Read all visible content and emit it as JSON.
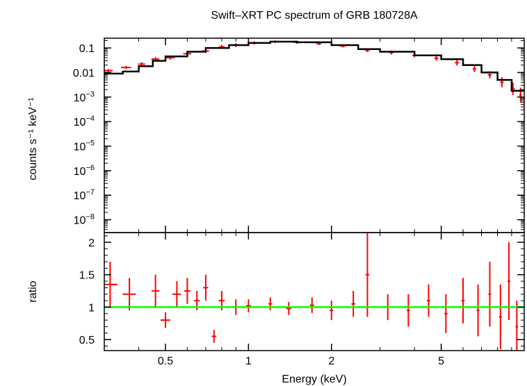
{
  "chart_data": {
    "type": "scatter",
    "title": "Swift–XRT PC spectrum of GRB 180728A",
    "xlabel": "Energy (keV)",
    "xscale": "log",
    "xlim": [
      0.3,
      10
    ],
    "x_ticks": [
      0.5,
      1,
      2,
      5
    ],
    "x_tick_labels": [
      "0.5",
      "1",
      "2",
      "5"
    ],
    "colors": {
      "data": "#ff0000",
      "model": "#000000",
      "ratio_line": "#00ff00",
      "frame": "#000000"
    },
    "panels": [
      {
        "id": "spectrum",
        "ylabel": "counts s⁻¹ keV⁻¹",
        "yscale": "log",
        "ylim": [
          3e-09,
          0.25
        ],
        "y_ticks": [
          0.1,
          0.01,
          0.001,
          0.0001,
          1e-05,
          1e-06,
          1e-07,
          1e-08
        ],
        "y_tick_labels": [
          {
            "base": "0.1",
            "exp": ""
          },
          {
            "base": "0.01",
            "exp": ""
          },
          {
            "base": "10",
            "exp": "−3"
          },
          {
            "base": "10",
            "exp": "−4"
          },
          {
            "base": "10",
            "exp": "−5"
          },
          {
            "base": "10",
            "exp": "−6"
          },
          {
            "base": "10",
            "exp": "−7"
          },
          {
            "base": "10",
            "exp": "−8"
          }
        ],
        "model_step": {
          "edges": [
            0.3,
            0.35,
            0.4,
            0.45,
            0.5,
            0.6,
            0.7,
            0.85,
            1.0,
            1.2,
            1.5,
            2.0,
            2.5,
            3.0,
            4.0,
            5.0,
            6.0,
            7.0,
            8.0,
            9.0,
            10.0
          ],
          "values": [
            0.009,
            0.011,
            0.018,
            0.03,
            0.045,
            0.07,
            0.1,
            0.13,
            0.16,
            0.18,
            0.17,
            0.13,
            0.09,
            0.07,
            0.05,
            0.035,
            0.02,
            0.01,
            0.005,
            0.0018
          ]
        },
        "data_points": [
          {
            "x": 0.31,
            "y": 0.012,
            "xerr": 0.012,
            "yerr_factor": 1.15
          },
          {
            "x": 0.36,
            "y": 0.016,
            "xerr": 0.015,
            "yerr_factor": 1.15
          },
          {
            "x": 0.41,
            "y": 0.022,
            "xerr": 0.012,
            "yerr_factor": 1.2
          },
          {
            "x": 0.46,
            "y": 0.035,
            "xerr": 0.015,
            "yerr_factor": 1.2
          },
          {
            "x": 0.52,
            "y": 0.04,
            "xerr": 0.02,
            "yerr_factor": 1.2
          },
          {
            "x": 0.6,
            "y": 0.058,
            "xerr": 0.02,
            "yerr_factor": 1.2
          },
          {
            "x": 0.7,
            "y": 0.075,
            "xerr": 0.02,
            "yerr_factor": 1.2
          },
          {
            "x": 0.8,
            "y": 0.11,
            "xerr": 0.02,
            "yerr_factor": 1.2
          },
          {
            "x": 0.9,
            "y": 0.13,
            "xerr": 0.02,
            "yerr_factor": 1.2
          },
          {
            "x": 1.05,
            "y": 0.16,
            "xerr": 0.03,
            "yerr_factor": 1.15
          },
          {
            "x": 1.25,
            "y": 0.18,
            "xerr": 0.03,
            "yerr_factor": 1.15
          },
          {
            "x": 1.5,
            "y": 0.17,
            "xerr": 0.04,
            "yerr_factor": 1.15
          },
          {
            "x": 1.8,
            "y": 0.15,
            "xerr": 0.04,
            "yerr_factor": 1.15
          },
          {
            "x": 2.2,
            "y": 0.12,
            "xerr": 0.05,
            "yerr_factor": 1.15
          },
          {
            "x": 2.7,
            "y": 0.08,
            "xerr": 0.05,
            "yerr_factor": 1.2
          },
          {
            "x": 3.3,
            "y": 0.065,
            "xerr": 0.06,
            "yerr_factor": 1.2
          },
          {
            "x": 4.0,
            "y": 0.05,
            "xerr": 0.07,
            "yerr_factor": 1.2
          },
          {
            "x": 4.8,
            "y": 0.038,
            "xerr": 0.08,
            "yerr_factor": 1.25
          },
          {
            "x": 5.7,
            "y": 0.025,
            "xerr": 0.1,
            "yerr_factor": 1.3
          },
          {
            "x": 6.6,
            "y": 0.014,
            "xerr": 0.1,
            "yerr_factor": 1.35
          },
          {
            "x": 7.5,
            "y": 0.008,
            "xerr": 0.12,
            "yerr_factor": 1.4
          },
          {
            "x": 8.3,
            "y": 0.004,
            "xerr": 0.12,
            "yerr_factor": 1.6
          },
          {
            "x": 9.1,
            "y": 0.0022,
            "xerr": 0.15,
            "yerr_factor": 1.8
          },
          {
            "x": 9.7,
            "y": 0.0012,
            "xerr": 0.1,
            "yerr_factor": 2.0
          }
        ]
      },
      {
        "id": "ratio",
        "ylabel": "ratio",
        "yscale": "linear",
        "ylim": [
          0.33,
          2.15
        ],
        "y_ticks": [
          0.5,
          1,
          1.5,
          2
        ],
        "y_tick_labels": [
          "0.5",
          "1",
          "1.5",
          "2"
        ],
        "reference_line": 1,
        "data_points": [
          {
            "x": 0.315,
            "y": 1.35,
            "xerr": 0.02,
            "yerr": 0.35
          },
          {
            "x": 0.37,
            "y": 1.2,
            "xerr": 0.02,
            "yerr": 0.25
          },
          {
            "x": 0.46,
            "y": 1.25,
            "xerr": 0.015,
            "yerr": 0.25
          },
          {
            "x": 0.5,
            "y": 0.8,
            "xerr": 0.02,
            "yerr": 0.12
          },
          {
            "x": 0.55,
            "y": 1.2,
            "xerr": 0.02,
            "yerr": 0.2
          },
          {
            "x": 0.6,
            "y": 1.25,
            "xerr": 0.015,
            "yerr": 0.2
          },
          {
            "x": 0.65,
            "y": 1.1,
            "xerr": 0.015,
            "yerr": 0.15
          },
          {
            "x": 0.7,
            "y": 1.3,
            "xerr": 0.015,
            "yerr": 0.2
          },
          {
            "x": 0.75,
            "y": 0.55,
            "xerr": 0.015,
            "yerr": 0.1
          },
          {
            "x": 0.8,
            "y": 1.1,
            "xerr": 0.02,
            "yerr": 0.15
          },
          {
            "x": 0.9,
            "y": 1.0,
            "xerr": 0.02,
            "yerr": 0.12
          },
          {
            "x": 1.0,
            "y": 1.02,
            "xerr": 0.02,
            "yerr": 0.1
          },
          {
            "x": 1.2,
            "y": 1.05,
            "xerr": 0.02,
            "yerr": 0.1
          },
          {
            "x": 1.4,
            "y": 0.98,
            "xerr": 0.03,
            "yerr": 0.1
          },
          {
            "x": 1.7,
            "y": 1.03,
            "xerr": 0.03,
            "yerr": 0.12
          },
          {
            "x": 2.0,
            "y": 0.95,
            "xerr": 0.03,
            "yerr": 0.15
          },
          {
            "x": 2.4,
            "y": 1.05,
            "xerr": 0.04,
            "yerr": 0.2
          },
          {
            "x": 2.7,
            "y": 1.5,
            "xerr": 0.04,
            "yerr": 0.65
          },
          {
            "x": 3.2,
            "y": 1.0,
            "xerr": 0.05,
            "yerr": 0.2
          },
          {
            "x": 3.8,
            "y": 0.95,
            "xerr": 0.05,
            "yerr": 0.25
          },
          {
            "x": 4.5,
            "y": 1.1,
            "xerr": 0.06,
            "yerr": 0.25
          },
          {
            "x": 5.2,
            "y": 0.9,
            "xerr": 0.07,
            "yerr": 0.3
          },
          {
            "x": 6.0,
            "y": 1.1,
            "xerr": 0.08,
            "yerr": 0.35
          },
          {
            "x": 6.8,
            "y": 0.95,
            "xerr": 0.08,
            "yerr": 0.4
          },
          {
            "x": 7.5,
            "y": 1.2,
            "xerr": 0.08,
            "yerr": 0.5
          },
          {
            "x": 8.2,
            "y": 0.85,
            "xerr": 0.1,
            "yerr": 0.5
          },
          {
            "x": 8.8,
            "y": 1.4,
            "xerr": 0.1,
            "yerr": 0.6
          },
          {
            "x": 9.4,
            "y": 0.7,
            "xerr": 0.1,
            "yerr": 0.4
          }
        ]
      }
    ]
  }
}
